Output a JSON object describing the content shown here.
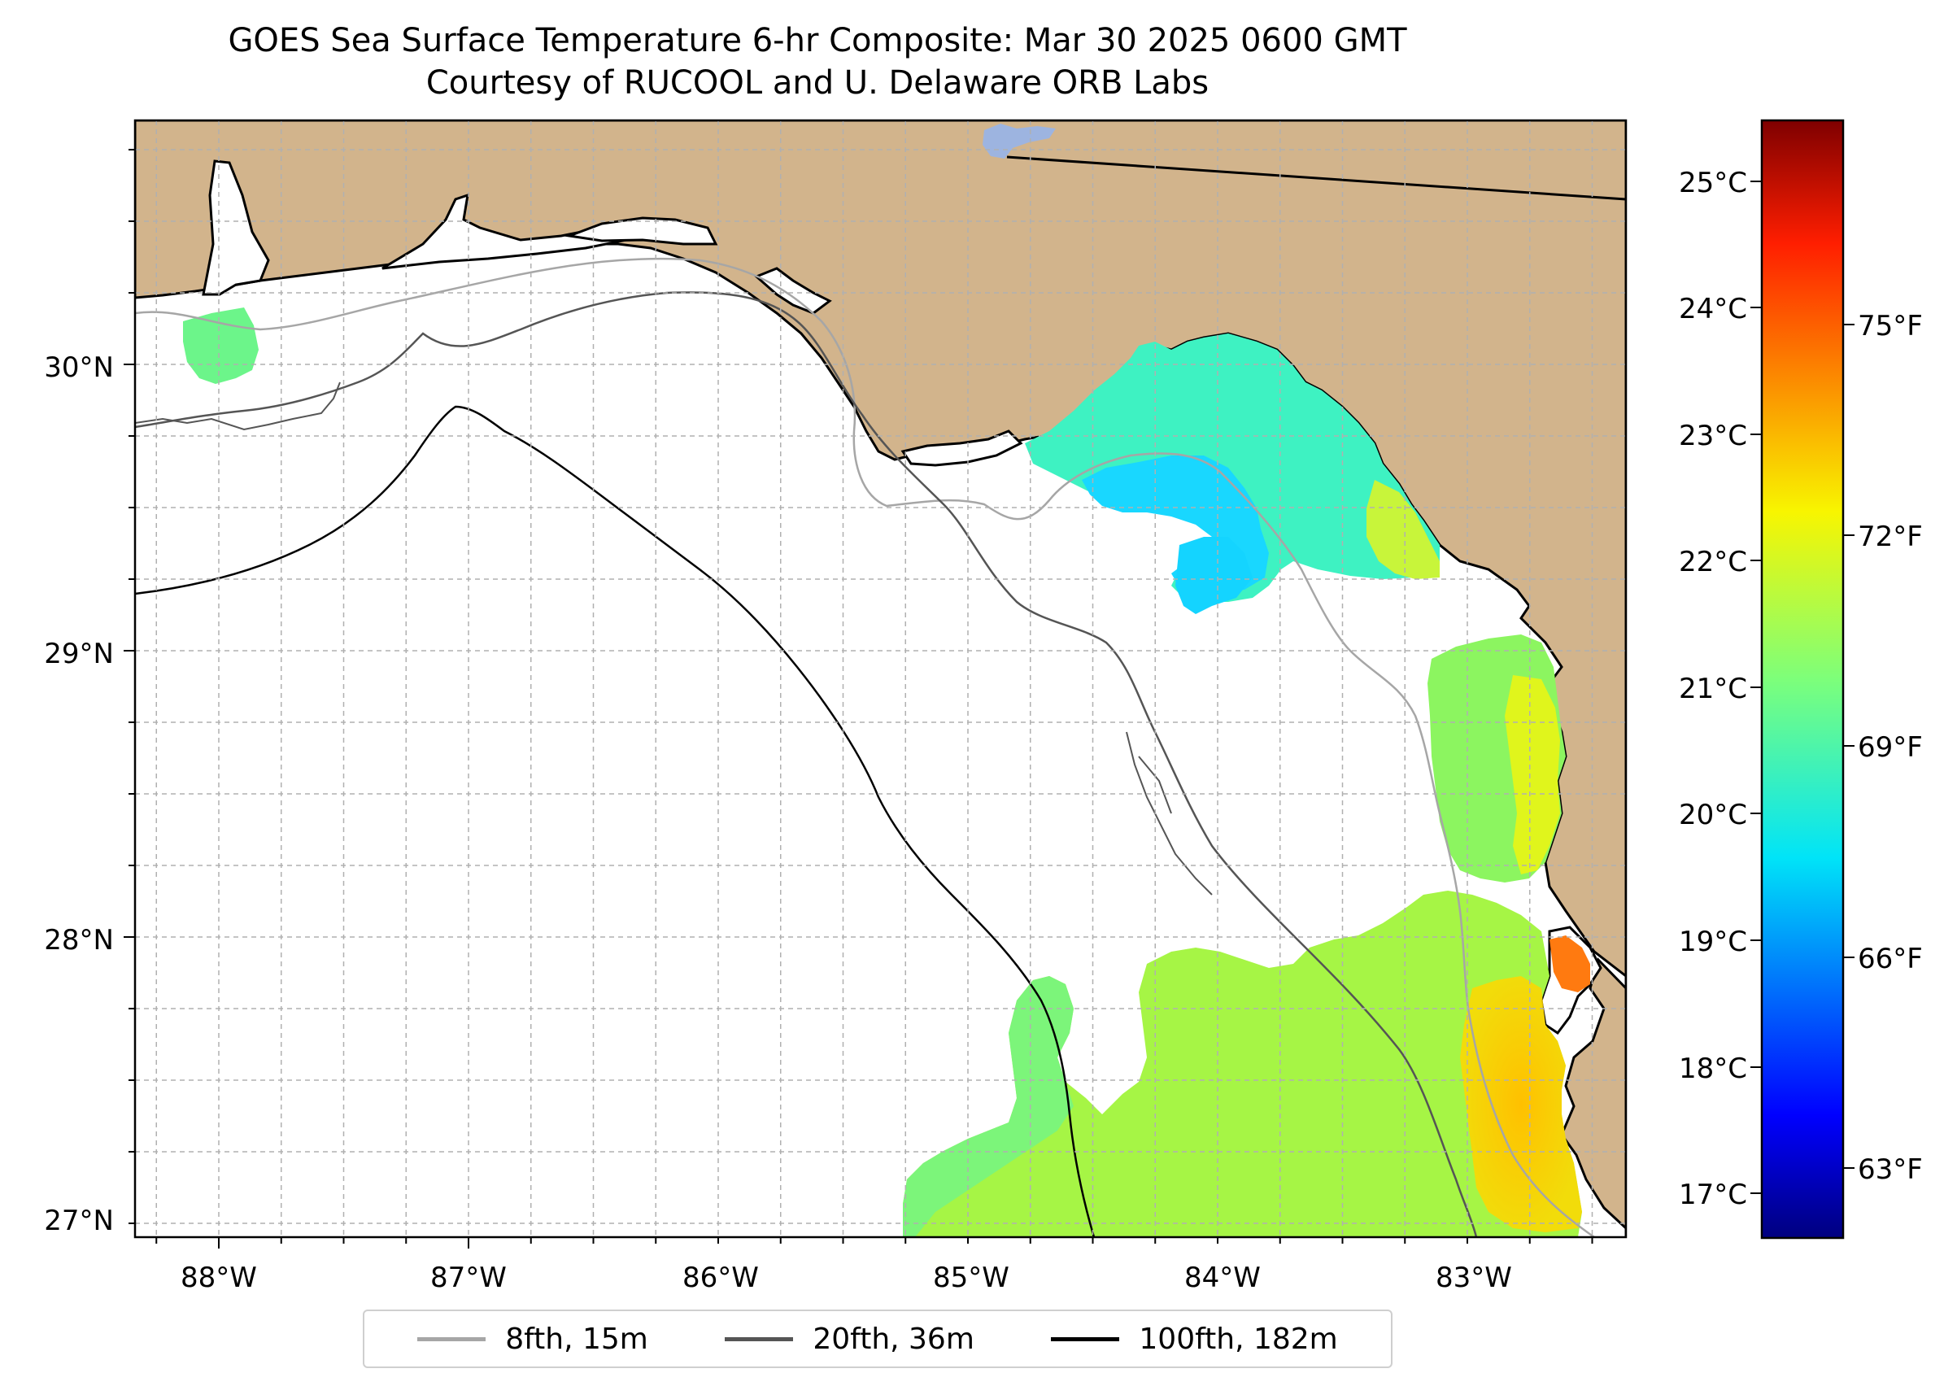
{
  "title": {
    "line1": "GOES Sea Surface Temperature 6-hr Composite: Mar 30 2025 0600 GMT",
    "line2": "Courtesy of RUCOOL and U. Delaware ORB Labs"
  },
  "map": {
    "lon_ticks": [
      "88°W",
      "87°W",
      "86°W",
      "85°W",
      "84°W",
      "83°W"
    ],
    "lat_ticks": [
      "30°N",
      "29°N",
      "28°N",
      "27°N"
    ],
    "lon_range": [
      -88.33,
      -82.41
    ],
    "lat_range": [
      26.93,
      30.85
    ]
  },
  "colorbar": {
    "celsius_ticks": [
      "25°C",
      "24°C",
      "23°C",
      "22°C",
      "21°C",
      "20°C",
      "19°C",
      "18°C",
      "17°C"
    ],
    "fahrenheit_ticks": [
      "75°F",
      "72°F",
      "69°F",
      "66°F",
      "63°F"
    ],
    "range_celsius": [
      16.7,
      25.5
    ]
  },
  "legend": {
    "items": [
      {
        "label": "8fth, 15m",
        "color": "#a6a6a6"
      },
      {
        "label": "20fth, 36m",
        "color": "#555555"
      },
      {
        "label": "100fth, 182m",
        "color": "#000000"
      }
    ]
  },
  "colors": {
    "land": "#d2b48c",
    "ocean": "#ffffff",
    "grid": "#b0b0b0",
    "lake": "#9db4e0"
  }
}
